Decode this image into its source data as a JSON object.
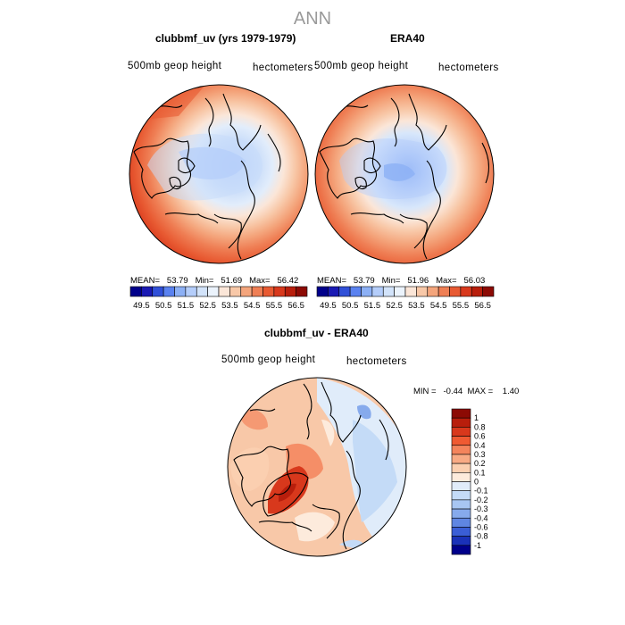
{
  "figure": {
    "title": "ANN"
  },
  "panels": [
    {
      "title": "clubbmf_uv (yrs 1979-1979)",
      "left_label": "500mb  geop height",
      "right_label": "hectometers",
      "stats_text": "MEAN=   53.79   Min=   51.69   Max=   56.42"
    },
    {
      "title": "ERA40",
      "left_label": "500mb  geop height",
      "right_label": "hectometers",
      "stats_text": "MEAN=   53.79   Min=   51.96   Max=   56.03"
    },
    {
      "title": "clubbmf_uv - ERA40",
      "left_label": "500mb  geop height",
      "right_label": "hectometers",
      "stats_text": "MIN =   -0.44  MAX =    1.40"
    }
  ],
  "chart_data": [
    {
      "type": "heatmap",
      "projection": "polar stereographic, north pole",
      "title": "clubbmf_uv (yrs 1979-1979)",
      "variable": "500mb geop height",
      "units": "hectometers",
      "mean": 53.79,
      "min": 51.69,
      "max": 56.42,
      "colorbar_levels": [
        "49.5",
        "50.5",
        "51.5",
        "52.5",
        "53.5",
        "54.5",
        "55.5",
        "56.5"
      ],
      "colorbar_colors": [
        "#00008b",
        "#1a1ab4",
        "#3050d8",
        "#5a82f0",
        "#8cb0f5",
        "#b4cdfa",
        "#d2e3fa",
        "#ebf3fc",
        "#fbe6d8",
        "#f8c8a8",
        "#f4a57c",
        "#ef7f55",
        "#e85a32",
        "#d8381c",
        "#b81e0c",
        "#8c0a04"
      ],
      "field_levels_hm": [
        56.42,
        56.0,
        55.5,
        55.0,
        54.5,
        54.0,
        53.5,
        53.0,
        52.5,
        52.0,
        51.69
      ]
    },
    {
      "type": "heatmap",
      "projection": "polar stereographic, north pole",
      "title": "ERA40",
      "variable": "500mb geop height",
      "units": "hectometers",
      "mean": 53.79,
      "min": 51.96,
      "max": 56.03,
      "colorbar_levels": [
        "49.5",
        "50.5",
        "51.5",
        "52.5",
        "53.5",
        "54.5",
        "55.5",
        "56.5"
      ],
      "colorbar_colors": [
        "#00008b",
        "#1a1ab4",
        "#3050d8",
        "#5a82f0",
        "#8cb0f5",
        "#b4cdfa",
        "#d2e3fa",
        "#ebf3fc",
        "#fbe6d8",
        "#f8c8a8",
        "#f4a57c",
        "#ef7f55",
        "#e85a32",
        "#d8381c",
        "#b81e0c",
        "#8c0a04"
      ],
      "field_levels_hm": [
        56.03,
        55.5,
        55.0,
        54.5,
        54.0,
        53.5,
        53.0,
        52.5,
        52.0,
        51.96
      ]
    },
    {
      "type": "heatmap",
      "projection": "polar stereographic, north pole",
      "title": "clubbmf_uv - ERA40",
      "variable": "500mb geop height",
      "units": "hectometers",
      "min": -0.44,
      "max": 1.4,
      "colorbar_levels": [
        "1",
        "0.8",
        "0.6",
        "0.4",
        "0.3",
        "0.2",
        "0.1",
        "0",
        "-0.1",
        "-0.2",
        "-0.3",
        "-0.4",
        "-0.6",
        "-0.8",
        "-1"
      ],
      "colorbar_colors": [
        "#8c0a04",
        "#b81e0c",
        "#d8381c",
        "#ef5a32",
        "#f4845c",
        "#f8aa84",
        "#fbcfb0",
        "#fdebdc",
        "#e0ecfa",
        "#c4dbf7",
        "#a8c6f2",
        "#86aaec",
        "#5f86e2",
        "#3a5ed6",
        "#1a32b8",
        "#00008b"
      ],
      "anomaly_blobs_hm": [
        0.8,
        1.4,
        0.3,
        0.2,
        0.15,
        -0.15,
        -0.3,
        -0.44
      ]
    }
  ]
}
